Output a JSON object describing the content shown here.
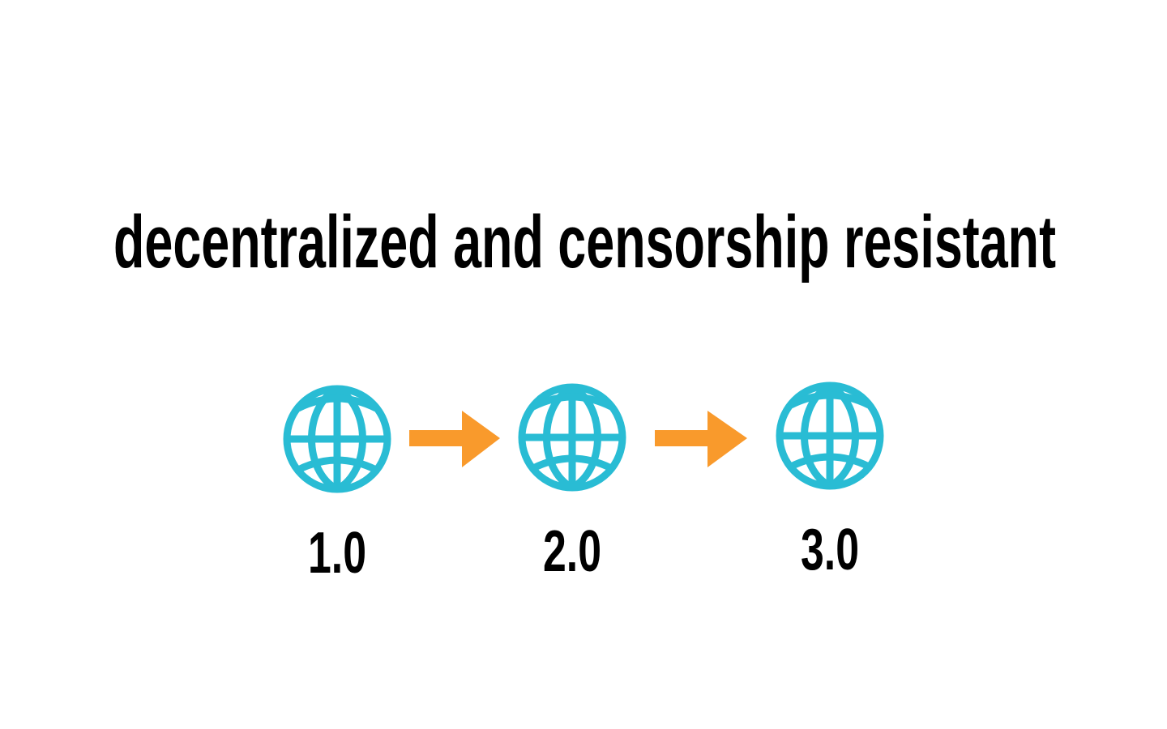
{
  "title": "decentralized and censorship resistant",
  "nodes": [
    {
      "label": "1.0"
    },
    {
      "label": "2.0"
    },
    {
      "label": "3.0"
    }
  ]
}
